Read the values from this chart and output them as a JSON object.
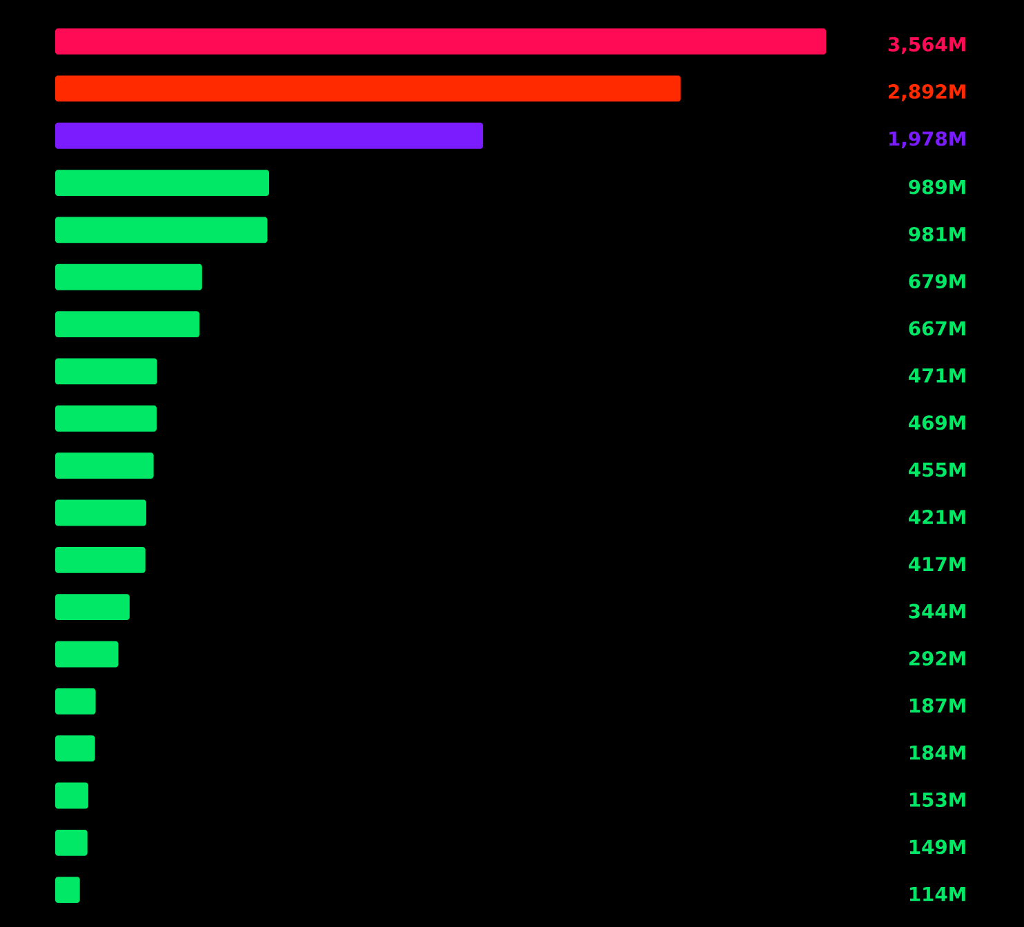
{
  "chart_data": {
    "type": "bar",
    "orientation": "horizontal",
    "categories": [
      null,
      null,
      null,
      null,
      null,
      null,
      null,
      null,
      null,
      null,
      null,
      null,
      null,
      null,
      null,
      null,
      null,
      null,
      null
    ],
    "values": [
      3564,
      2892,
      1978,
      989,
      981,
      679,
      667,
      471,
      469,
      455,
      421,
      417,
      344,
      292,
      187,
      184,
      153,
      149,
      114
    ],
    "value_labels": [
      "3,564M",
      "2,892M",
      "1,978M",
      "989M",
      "981M",
      "679M",
      "667M",
      "471M",
      "469M",
      "455M",
      "421M",
      "417M",
      "344M",
      "292M",
      "187M",
      "184M",
      "153M",
      "149M",
      "114M"
    ],
    "colors": [
      "#ff0a55",
      "#ff2a00",
      "#7a1cff",
      "#00e865",
      "#00e865",
      "#00e865",
      "#00e865",
      "#00e865",
      "#00e865",
      "#00e865",
      "#00e865",
      "#00e865",
      "#00e865",
      "#00e865",
      "#00e865",
      "#00e865",
      "#00e865",
      "#00e865",
      "#00e865"
    ]
  }
}
